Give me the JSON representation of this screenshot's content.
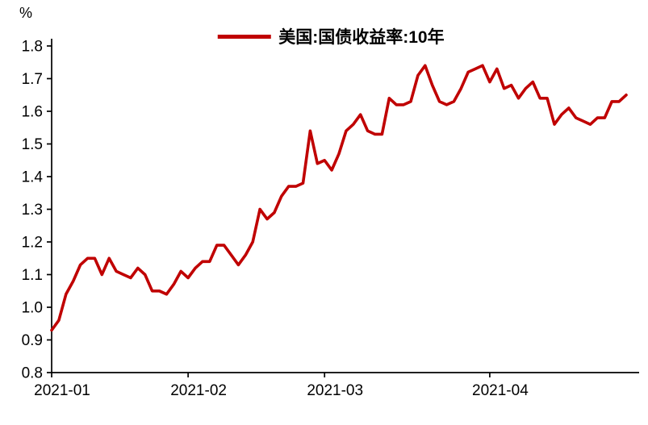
{
  "chart_data": {
    "type": "line",
    "title": "",
    "series_name": "美国:国债收益率:10年",
    "ylabel": "%",
    "xlabel": "",
    "ylim": [
      0.8,
      1.8
    ],
    "yticks": [
      "0.8",
      "0.9",
      "1.0",
      "1.1",
      "1.2",
      "1.3",
      "1.4",
      "1.5",
      "1.6",
      "1.7",
      "1.8"
    ],
    "xticks": [
      {
        "label": "2021-01",
        "index": 0
      },
      {
        "label": "2021-02",
        "index": 19
      },
      {
        "label": "2021-03",
        "index": 38
      },
      {
        "label": "2021-04",
        "index": 61
      }
    ],
    "grid": false,
    "legend_position": "top-center",
    "line_color": "#c00000",
    "axis_color": "#000000",
    "background": "#ffffff",
    "dates": [
      "2021-01-04",
      "2021-01-05",
      "2021-01-06",
      "2021-01-07",
      "2021-01-08",
      "2021-01-11",
      "2021-01-12",
      "2021-01-13",
      "2021-01-14",
      "2021-01-15",
      "2021-01-19",
      "2021-01-20",
      "2021-01-21",
      "2021-01-22",
      "2021-01-25",
      "2021-01-26",
      "2021-01-27",
      "2021-01-28",
      "2021-01-29",
      "2021-02-01",
      "2021-02-02",
      "2021-02-03",
      "2021-02-04",
      "2021-02-05",
      "2021-02-08",
      "2021-02-09",
      "2021-02-10",
      "2021-02-11",
      "2021-02-12",
      "2021-02-16",
      "2021-02-17",
      "2021-02-18",
      "2021-02-19",
      "2021-02-22",
      "2021-02-23",
      "2021-02-24",
      "2021-02-25",
      "2021-02-26",
      "2021-03-01",
      "2021-03-02",
      "2021-03-03",
      "2021-03-04",
      "2021-03-05",
      "2021-03-08",
      "2021-03-09",
      "2021-03-10",
      "2021-03-11",
      "2021-03-12",
      "2021-03-15",
      "2021-03-16",
      "2021-03-17",
      "2021-03-18",
      "2021-03-19",
      "2021-03-22",
      "2021-03-23",
      "2021-03-24",
      "2021-03-25",
      "2021-03-26",
      "2021-03-29",
      "2021-03-30",
      "2021-03-31",
      "2021-04-01",
      "2021-04-05",
      "2021-04-06",
      "2021-04-07",
      "2021-04-08",
      "2021-04-09",
      "2021-04-12",
      "2021-04-13",
      "2021-04-14",
      "2021-04-15",
      "2021-04-16",
      "2021-04-19",
      "2021-04-20",
      "2021-04-21",
      "2021-04-22",
      "2021-04-23",
      "2021-04-26",
      "2021-04-27",
      "2021-04-28",
      "2021-04-29"
    ],
    "values": [
      0.93,
      0.96,
      1.04,
      1.08,
      1.13,
      1.15,
      1.15,
      1.1,
      1.15,
      1.11,
      1.1,
      1.09,
      1.12,
      1.1,
      1.05,
      1.05,
      1.04,
      1.07,
      1.11,
      1.09,
      1.12,
      1.14,
      1.14,
      1.19,
      1.19,
      1.16,
      1.13,
      1.16,
      1.2,
      1.3,
      1.27,
      1.29,
      1.34,
      1.37,
      1.37,
      1.38,
      1.54,
      1.44,
      1.45,
      1.42,
      1.47,
      1.54,
      1.56,
      1.59,
      1.54,
      1.53,
      1.53,
      1.64,
      1.62,
      1.62,
      1.63,
      1.71,
      1.74,
      1.68,
      1.63,
      1.62,
      1.63,
      1.67,
      1.72,
      1.73,
      1.74,
      1.69,
      1.73,
      1.67,
      1.68,
      1.64,
      1.67,
      1.69,
      1.64,
      1.64,
      1.56,
      1.59,
      1.61,
      1.58,
      1.57,
      1.56,
      1.58,
      1.58,
      1.63,
      1.63,
      1.65
    ]
  }
}
